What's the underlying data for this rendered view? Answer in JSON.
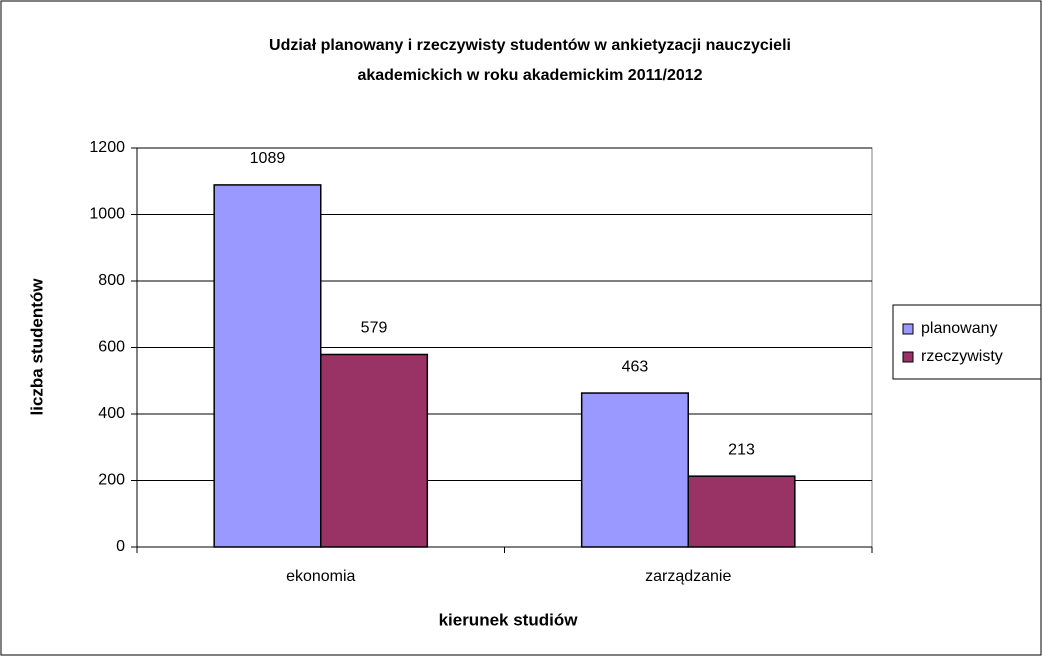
{
  "chart_data": {
    "type": "bar",
    "title": [
      "Udział planowany i rzeczywisty studentów w ankietyzacji nauczycieli",
      "akademickich w roku akademickim 2011/2012"
    ],
    "x_label": "kierunek studiów",
    "y_label": "liczba studentów",
    "categories": [
      "ekonomia",
      "zarządzanie"
    ],
    "series": [
      {
        "name": "planowany",
        "color": "#9999ff",
        "values": [
          1089,
          463
        ]
      },
      {
        "name": "rzeczywisty",
        "color": "#993366",
        "values": [
          579,
          213
        ]
      }
    ],
    "ylim": [
      0,
      1200
    ],
    "yticks": [
      0,
      200,
      400,
      600,
      800,
      1000,
      1200
    ],
    "grid": true,
    "legend": "right"
  }
}
